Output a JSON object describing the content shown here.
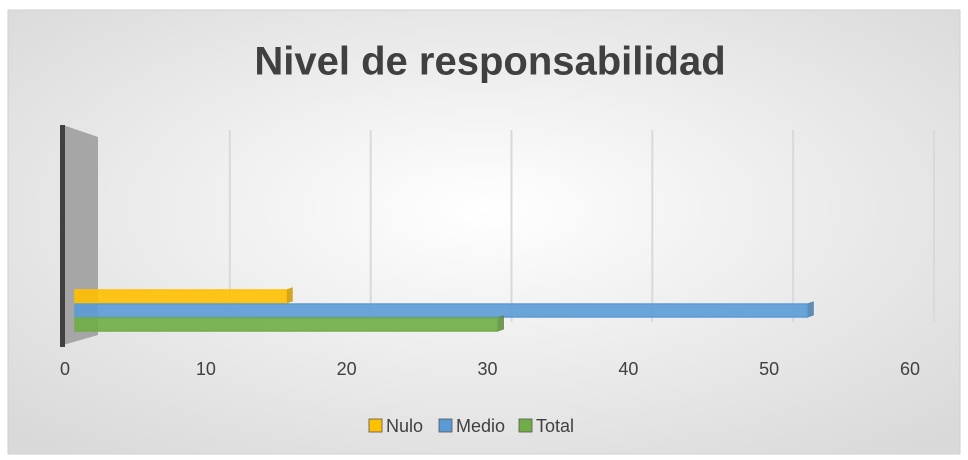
{
  "chart_data": {
    "type": "bar",
    "orientation": "horizontal",
    "title": "Nivel de responsabilidad",
    "categories": [
      null
    ],
    "series": [
      {
        "name": "Nulo",
        "color": "#ffc000",
        "values": [
          15
        ]
      },
      {
        "name": "Medio",
        "color": "#5b9bd5",
        "values": [
          52
        ]
      },
      {
        "name": "Total",
        "color": "#70ad47",
        "values": [
          30
        ]
      }
    ],
    "xlim": [
      0,
      60
    ],
    "xticks": [
      0,
      10,
      20,
      30,
      40,
      50,
      60
    ],
    "grid": true,
    "legend": "bottom"
  }
}
